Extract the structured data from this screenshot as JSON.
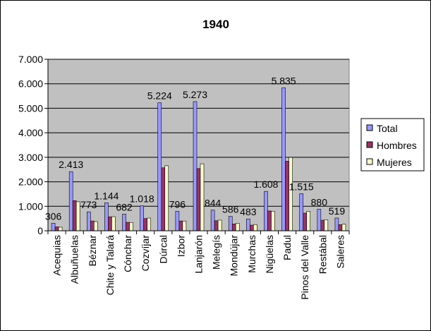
{
  "chart_data": {
    "type": "bar",
    "title": "1940",
    "categories": [
      "Acequias",
      "Albuñuelas",
      "Béznar",
      "Chite y Talará",
      "Cónchar",
      "Cozvíjar",
      "Dúrcal",
      "Izbor",
      "Lanjarón",
      "Melegís",
      "Mondújar",
      "Murchas",
      "Nigüelas",
      "Padul",
      "Pinos del Valle",
      "Restábal",
      "Saleres"
    ],
    "series": [
      {
        "name": "Total",
        "color": "#9999FF",
        "values": [
          306,
          2413,
          773,
          1144,
          682,
          1018,
          5224,
          796,
          5273,
          844,
          586,
          483,
          1608,
          5835,
          1515,
          880,
          519
        ]
      },
      {
        "name": "Hombres",
        "color": "#993366",
        "values": [
          160,
          1230,
          400,
          570,
          345,
          500,
          2570,
          400,
          2540,
          410,
          280,
          230,
          810,
          2840,
          720,
          430,
          250
        ]
      },
      {
        "name": "Mujeres",
        "color": "#FFFFCC",
        "values": [
          146,
          1183,
          373,
          574,
          337,
          518,
          2654,
          396,
          2733,
          434,
          306,
          253,
          798,
          2995,
          795,
          450,
          269
        ]
      }
    ],
    "data_labels": [
      "306",
      "2.413",
      "773",
      "1.144",
      "682",
      "1.018",
      "5.224",
      "796",
      "5.273",
      "844",
      "586",
      "483",
      "1.608",
      "5.835",
      "1.515",
      "880",
      "519"
    ],
    "y_ticks": [
      {
        "value": 0,
        "label": "0"
      },
      {
        "value": 1000,
        "label": "1.000"
      },
      {
        "value": 2000,
        "label": "2.000"
      },
      {
        "value": 3000,
        "label": "3.000"
      },
      {
        "value": 4000,
        "label": "4.000"
      },
      {
        "value": 5000,
        "label": "5.000"
      },
      {
        "value": 6000,
        "label": "6.000"
      },
      {
        "value": 7000,
        "label": "7.000"
      }
    ],
    "ylim": [
      0,
      7000
    ],
    "grid": true,
    "plot_background": "#C0C0C0",
    "legend_position": "right"
  }
}
